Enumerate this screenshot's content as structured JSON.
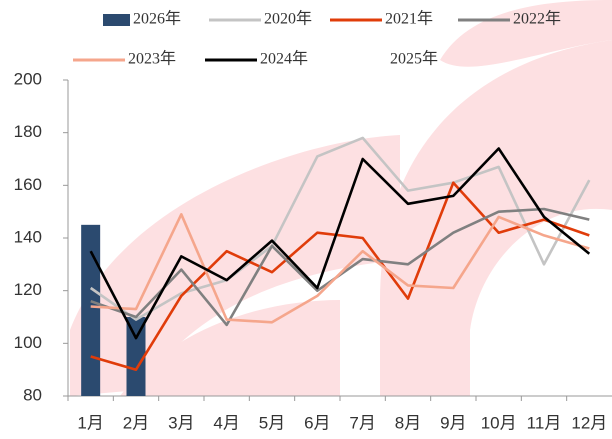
{
  "chart_data": {
    "type": "combo",
    "categories": [
      "1月",
      "2月",
      "3月",
      "4月",
      "5月",
      "6月",
      "7月",
      "8月",
      "9月",
      "10月",
      "11月",
      "12月"
    ],
    "series": [
      {
        "name": "2026年",
        "type": "bar",
        "color": "#2b4a6f",
        "values": [
          145,
          110,
          null,
          null,
          null,
          null,
          null,
          null,
          null,
          null,
          null,
          null
        ]
      },
      {
        "name": "2020年",
        "type": "line",
        "color": "#c4c4c4",
        "values": [
          121,
          109,
          119,
          124,
          137,
          171,
          178,
          158,
          161,
          167,
          130,
          162
        ]
      },
      {
        "name": "2021年",
        "type": "line",
        "color": "#e03c0a",
        "values": [
          95,
          90,
          118,
          135,
          127,
          142,
          140,
          117,
          161,
          142,
          147,
          141
        ]
      },
      {
        "name": "2022年",
        "type": "line",
        "color": "#808080",
        "values": [
          116,
          110,
          128,
          107,
          137,
          120,
          132,
          130,
          142,
          150,
          151,
          147
        ]
      },
      {
        "name": "2023年",
        "type": "line",
        "color": "#f5a68c",
        "values": [
          114,
          113,
          149,
          109,
          108,
          118,
          135,
          122,
          121,
          148,
          141,
          136
        ]
      },
      {
        "name": "2024年",
        "type": "line",
        "color": "#000000",
        "values": [
          135,
          102,
          133,
          124,
          139,
          121,
          170,
          153,
          156,
          174,
          148,
          134
        ]
      },
      {
        "name": "2025年",
        "type": "line",
        "color": "#ffffff",
        "values": [
          null,
          null,
          null,
          null,
          null,
          null,
          null,
          null,
          null,
          null,
          null,
          null
        ]
      }
    ],
    "ylim": [
      80,
      200
    ],
    "yticks": [
      80,
      100,
      120,
      140,
      160,
      180,
      200
    ]
  }
}
